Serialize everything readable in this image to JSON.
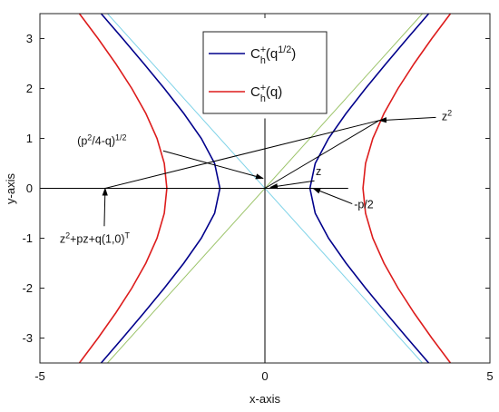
{
  "chart_data": {
    "type": "line",
    "xlabel": "x-axis",
    "ylabel": "y-axis",
    "xlim": [
      -5,
      5
    ],
    "ylim": [
      -3.5,
      3.5
    ],
    "xticks": [
      -5,
      0,
      5
    ],
    "yticks": [
      -3,
      -2,
      -1,
      0,
      1,
      2,
      3
    ],
    "legend": "top",
    "series": [
      {
        "name": [
          {
            "text": "C"
          },
          {
            "text": "+",
            "pos": "sup"
          },
          {
            "text": "h",
            "pos": "sub"
          },
          {
            "text": "(q"
          },
          {
            "text": "1/2",
            "pos": "sup"
          },
          {
            "text": ")"
          }
        ],
        "color": "#00008b",
        "x": [
          3.64,
          3.162,
          2.693,
          2.236,
          1.803,
          1.414,
          1.118,
          1,
          1.118,
          1.414,
          1.803,
          2.236,
          2.693,
          3.162,
          3.64,
          null,
          -3.64,
          -3.162,
          -2.693,
          -2.236,
          -1.803,
          -1.414,
          -1.118,
          -1,
          -1.118,
          -1.414,
          -1.803,
          -2.236,
          -2.693,
          -3.162,
          -3.64
        ],
        "y": [
          -3.5,
          -3,
          -2.5,
          -2,
          -1.5,
          -1,
          -0.5,
          0,
          0.5,
          1,
          1.5,
          2,
          2.5,
          3,
          3.5,
          null,
          -3.5,
          -3,
          -2.5,
          -2,
          -1.5,
          -1,
          -0.5,
          0,
          0.5,
          1,
          1.5,
          2,
          2.5,
          3,
          3.5
        ]
      },
      {
        "name": [
          {
            "text": "C"
          },
          {
            "text": "+",
            "pos": "sup"
          },
          {
            "text": "h",
            "pos": "sub"
          },
          {
            "text": "(q)"
          }
        ],
        "color": "#dd1c1c",
        "x": [
          4.123,
          3.708,
          3.317,
          2.958,
          2.646,
          2.398,
          2.236,
          2.179,
          2.236,
          2.398,
          2.646,
          2.958,
          3.317,
          3.708,
          4.123,
          null,
          -4.123,
          -3.708,
          -3.317,
          -2.958,
          -2.646,
          -2.398,
          -2.236,
          -2.179,
          -2.236,
          -2.398,
          -2.646,
          -2.958,
          -3.317,
          -3.708,
          -4.123
        ],
        "y": [
          -3.5,
          -3,
          -2.5,
          -2,
          -1.5,
          -1,
          -0.5,
          0,
          0.5,
          1,
          1.5,
          2,
          2.5,
          3,
          3.5,
          null,
          -3.5,
          -3,
          -2.5,
          -2,
          -1.5,
          -1,
          -0.5,
          0,
          0.5,
          1,
          1.5,
          2,
          2.5,
          3,
          3.5
        ]
      },
      {
        "color": "#9cc46a",
        "x": [
          -3.5,
          3.5
        ],
        "y": [
          -3.5,
          3.5
        ]
      },
      {
        "color": "#7fd3e8",
        "x": [
          -3.5,
          3.5
        ],
        "y": [
          3.5,
          -3.5
        ]
      },
      {
        "color": "#000000",
        "x": [
          0,
          0,
          null,
          -5,
          1.85,
          null,
          -3.55,
          2.54,
          0
        ],
        "y": [
          -3.5,
          1.4,
          null,
          0,
          0,
          null,
          0,
          1.36,
          0
        ]
      }
    ],
    "annotations": [
      {
        "parts": [
          {
            "text": "z"
          },
          {
            "text": "2",
            "pos": "sup"
          }
        ],
        "text_at": [
          3.93,
          1.36
        ],
        "arrow_from": [
          3.8,
          1.42
        ],
        "arrow_to": [
          2.54,
          1.36
        ]
      },
      {
        "parts": [
          {
            "text": "(p"
          },
          {
            "text": "2",
            "pos": "sup"
          },
          {
            "text": "/4-q)"
          },
          {
            "text": "1/2",
            "pos": "sup"
          }
        ],
        "text_at": [
          -4.17,
          0.87
        ],
        "arrow_from": [
          -2.26,
          0.75
        ],
        "arrow_to": [
          -0.04,
          0.2
        ]
      },
      {
        "parts": [
          {
            "text": "z"
          }
        ],
        "text_at": [
          1.13,
          0.26
        ],
        "arrow_from": [
          1.1,
          0.15
        ],
        "arrow_to": [
          0.12,
          0.02
        ]
      },
      {
        "parts": [
          {
            "text": "-p/2"
          }
        ],
        "text_at": [
          1.98,
          -0.4
        ],
        "arrow_from": [
          1.94,
          -0.31
        ],
        "arrow_to": [
          1.07,
          0
        ]
      },
      {
        "parts": [
          {
            "text": "z"
          },
          {
            "text": "2",
            "pos": "sup"
          },
          {
            "text": "+pz+q(1,0)"
          },
          {
            "text": "T",
            "pos": "sup"
          }
        ],
        "text_at": [
          -4.56,
          -1.09
        ],
        "arrow_from": [
          -3.57,
          -0.76
        ],
        "arrow_to": [
          -3.55,
          0
        ]
      }
    ]
  }
}
